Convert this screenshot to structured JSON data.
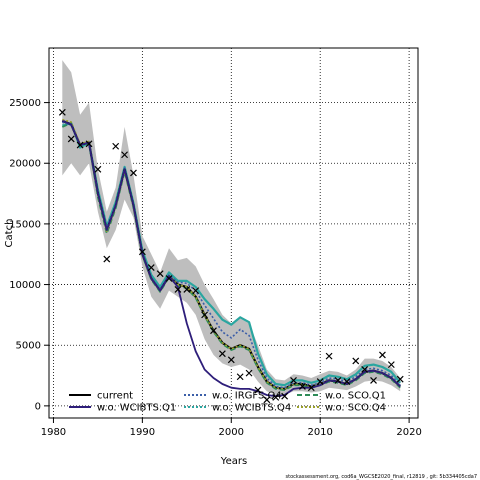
{
  "chart_data": {
    "type": "line",
    "title": "",
    "xlabel": "Years",
    "ylabel": "Catch",
    "xlim": [
      1979.5,
      2021
    ],
    "ylim": [
      -1000,
      29500
    ],
    "x_ticks": [
      1980,
      1990,
      2000,
      2010,
      2020
    ],
    "y_ticks": [
      0,
      5000,
      10000,
      15000,
      20000,
      25000
    ],
    "grid": "dotted",
    "legend_position": "bottom",
    "footer": "stockassessment.org, cod6a_WGCSE2020_final, r12819 , git: 5b334405cda7",
    "colors": {
      "band": "#bebebe",
      "current": "#000000",
      "wcibts_q1": "#2e1e7a",
      "irgfs_q4": "#3b5ea8",
      "wcibts_q4": "#2aa6a0",
      "sco_q1": "#2e8b57",
      "sco_q4": "#9aa02a",
      "observed": "#000000"
    },
    "years": [
      1981,
      1982,
      1983,
      1984,
      1985,
      1986,
      1987,
      1988,
      1989,
      1990,
      1991,
      1992,
      1993,
      1994,
      1995,
      1996,
      1997,
      1998,
      1999,
      2000,
      2001,
      2002,
      2003,
      2004,
      2005,
      2006,
      2007,
      2008,
      2009,
      2010,
      2011,
      2012,
      2013,
      2014,
      2015,
      2016,
      2017,
      2018,
      2019
    ],
    "band_upper": [
      28500,
      27500,
      24000,
      25000,
      19500,
      16000,
      18000,
      23000,
      19000,
      14000,
      12500,
      11000,
      13000,
      12000,
      12200,
      11500,
      10000,
      8800,
      7500,
      6800,
      7200,
      6800,
      5000,
      3000,
      2200,
      2100,
      2600,
      2500,
      2300,
      2600,
      2900,
      2800,
      2500,
      3000,
      3900,
      3900,
      3700,
      3200,
      2300
    ],
    "band_lower": [
      19000,
      20000,
      19000,
      20000,
      16000,
      13000,
      14500,
      17000,
      15500,
      11500,
      9000,
      8000,
      9500,
      9000,
      8500,
      7500,
      5500,
      4200,
      3500,
      3200,
      3400,
      3000,
      2000,
      1200,
      900,
      900,
      1200,
      1200,
      1100,
      1200,
      1500,
      1400,
      1300,
      1600,
      2000,
      2100,
      2000,
      1700,
      1200
    ],
    "series": [
      {
        "name": "current",
        "values": [
          23500,
          23200,
          21500,
          21700,
          17500,
          14500,
          16500,
          19500,
          16500,
          12500,
          10500,
          9500,
          10700,
          10000,
          9800,
          9000,
          7500,
          6200,
          5200,
          4700,
          5000,
          4700,
          3200,
          2000,
          1500,
          1400,
          1800,
          1800,
          1600,
          1800,
          2100,
          2000,
          1800,
          2200,
          2800,
          2900,
          2700,
          2300,
          1600
        ]
      },
      {
        "name": "w.o. WCIBTS.Q1",
        "values": [
          23500,
          23200,
          21500,
          21700,
          17500,
          14500,
          16500,
          19500,
          16500,
          12500,
          10500,
          9500,
          10700,
          9800,
          6800,
          4500,
          3000,
          2300,
          1800,
          1500,
          1400,
          1400,
          1200,
          900,
          800,
          900,
          1400,
          1500,
          1500,
          1700,
          2100,
          2000,
          1800,
          2200,
          2800,
          2900,
          2700,
          2300,
          1600
        ]
      },
      {
        "name": "w.o. IRGFS.Q4",
        "values": [
          23400,
          23100,
          21500,
          21700,
          17600,
          14700,
          16600,
          19600,
          16600,
          12600,
          10600,
          9600,
          10800,
          10200,
          10100,
          9500,
          8300,
          7200,
          6100,
          5600,
          6300,
          5800,
          3800,
          2300,
          1600,
          1500,
          1900,
          1900,
          1700,
          1900,
          2300,
          2200,
          2000,
          2400,
          3000,
          3100,
          2900,
          2500,
          1700
        ]
      },
      {
        "name": "w.o. WCIBTS.Q4",
        "values": [
          23100,
          23300,
          21300,
          21700,
          17800,
          14800,
          16800,
          19700,
          16700,
          12800,
          10800,
          9800,
          11000,
          10300,
          10300,
          9800,
          8800,
          8000,
          7100,
          6700,
          7300,
          6900,
          4300,
          2600,
          1800,
          1700,
          2100,
          2100,
          1900,
          2100,
          2500,
          2400,
          2200,
          2600,
          3300,
          3400,
          3200,
          2800,
          1900
        ]
      },
      {
        "name": "w.o. SCO.Q1",
        "values": [
          23000,
          23300,
          21500,
          21600,
          17200,
          14200,
          16300,
          19300,
          16300,
          12400,
          10400,
          9400,
          10600,
          9900,
          9700,
          8900,
          7400,
          6100,
          5100,
          4600,
          4900,
          4600,
          3100,
          1900,
          1400,
          1300,
          1700,
          1700,
          1500,
          1700,
          2000,
          1900,
          1700,
          2100,
          2700,
          2800,
          2600,
          2200,
          1500
        ]
      },
      {
        "name": "w.o. SCO.Q4",
        "values": [
          23600,
          23400,
          21600,
          21800,
          17400,
          14400,
          16400,
          19400,
          16400,
          12500,
          10500,
          9500,
          10700,
          10000,
          9800,
          9000,
          7500,
          6200,
          5200,
          4700,
          5000,
          4700,
          3200,
          2000,
          1500,
          1400,
          1800,
          1800,
          1600,
          1800,
          2100,
          2000,
          1800,
          2200,
          2800,
          2900,
          2700,
          2300,
          1600
        ]
      }
    ],
    "observed": [
      24200,
      22000,
      21500,
      21600,
      19500,
      12100,
      21400,
      20700,
      19200,
      12700,
      11400,
      10900,
      10500,
      9600,
      9600,
      9500,
      7500,
      6200,
      4300,
      3800,
      2400,
      2700,
      1300,
      500,
      700,
      800,
      2100,
      1600,
      1500,
      2000,
      4100,
      2100,
      2000,
      3700,
      3000,
      2100,
      4200,
      3400,
      2200
    ],
    "legend": [
      {
        "label": "current",
        "series": 0,
        "style": "solid"
      },
      {
        "label": "w.o. IRGFS.Q4",
        "series": 2,
        "style": "dotted"
      },
      {
        "label": "w.o. SCO.Q1",
        "series": 4,
        "style": "dashed"
      },
      {
        "label": "w.o. WCIBTS.Q1",
        "series": 1,
        "style": "solid"
      },
      {
        "label": "w.o. WCIBTS.Q4",
        "series": 3,
        "style": "dotted"
      },
      {
        "label": "w.o. SCO.Q4",
        "series": 5,
        "style": "dotted"
      }
    ]
  }
}
